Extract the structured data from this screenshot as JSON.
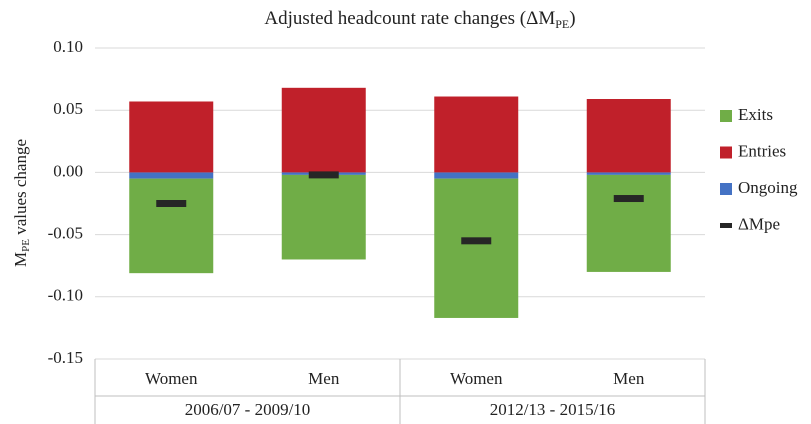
{
  "chart_data": {
    "type": "bar",
    "stacked": true,
    "title": {
      "main": "Adjusted headcount rate changes (ΔM",
      "subscript": "PE",
      "end": ")"
    },
    "y_label": {
      "main": "M",
      "subscript": "PE",
      "end": " values change"
    },
    "groups": [
      {
        "label": "2006/07 - 2009/10",
        "categories": [
          "Women",
          "Men"
        ]
      },
      {
        "label": "2012/13 - 2015/16",
        "categories": [
          "Women",
          "Men"
        ]
      }
    ],
    "series": [
      {
        "name": "Exits",
        "color": "#70ad47",
        "style": "bar",
        "values": [
          -0.076,
          -0.068,
          -0.112,
          -0.078
        ]
      },
      {
        "name": "Entries",
        "color": "#c0202a",
        "style": "bar",
        "values": [
          0.057,
          0.068,
          0.061,
          0.059
        ]
      },
      {
        "name": "Ongoing",
        "color": "#4472c4",
        "style": "bar",
        "values": [
          -0.005,
          -0.002,
          -0.005,
          -0.002
        ]
      },
      {
        "name": "ΔMpe",
        "color": "#262626",
        "style": "marker",
        "values": [
          -0.025,
          -0.002,
          -0.055,
          -0.021
        ]
      }
    ],
    "stack_order": [
      "Ongoing",
      "Exits",
      "Entries"
    ],
    "ylim": [
      -0.15,
      0.1
    ],
    "yticks": [
      {
        "value": 0.1,
        "label": "0.10"
      },
      {
        "value": 0.05,
        "label": "0.05"
      },
      {
        "value": 0,
        "label": "0.00"
      },
      {
        "value": -0.05,
        "label": "-0.05"
      },
      {
        "value": -0.1,
        "label": "-0.10"
      },
      {
        "value": -0.15,
        "label": "-0.15"
      }
    ],
    "grid": true,
    "legend": "right"
  }
}
